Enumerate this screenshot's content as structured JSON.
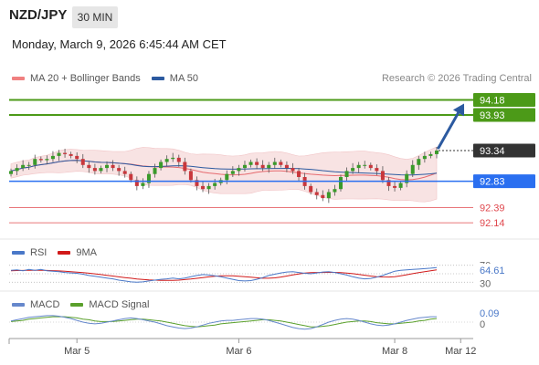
{
  "header": {
    "symbol": "NZD/JPY",
    "timeframe": "30 MIN",
    "datetime": "Monday, March 9, 2026 6:45:44 AM CET"
  },
  "credit": "Research © 2026 Trading Central",
  "colors": {
    "up_green": "#4c9a18",
    "current": "#333333",
    "pivot_blue": "#2a6ff0",
    "support_red": "#e0484e",
    "bb_fill": "#f6d9da",
    "ma20": "#e66a6f",
    "ma50": "#2c5aa0",
    "rsi": "#4a78c8",
    "rsi_ma": "#d11a1a",
    "macd": "#6688cc",
    "macd_signal": "#5aa02c"
  },
  "chart_data": [
    {
      "type": "candlestick",
      "legend": [
        {
          "name": "MA 20 + Bollinger Bands",
          "color": "#f08080"
        },
        {
          "name": "MA 50",
          "color": "#2c5aa0"
        }
      ],
      "price_range": [
        91.9,
        94.4
      ],
      "levels": [
        {
          "value": 94.18,
          "label": "94.18",
          "kind": "resistance"
        },
        {
          "value": 93.93,
          "label": "93.93",
          "kind": "resistance"
        },
        {
          "value": 93.34,
          "label": "93.34",
          "kind": "current"
        },
        {
          "value": 92.83,
          "label": "92.83",
          "kind": "pivot"
        },
        {
          "value": 92.39,
          "label": "92.39",
          "kind": "support"
        },
        {
          "value": 92.14,
          "label": "92.14",
          "kind": "support"
        }
      ],
      "closes": [
        93.0,
        93.05,
        93.1,
        93.1,
        93.2,
        93.18,
        93.2,
        93.25,
        93.3,
        93.28,
        93.25,
        93.2,
        93.1,
        93.05,
        93.0,
        93.05,
        93.1,
        93.05,
        93.0,
        92.95,
        92.85,
        92.75,
        92.8,
        92.95,
        93.05,
        93.15,
        93.2,
        93.22,
        93.15,
        93.0,
        92.85,
        92.75,
        92.7,
        92.75,
        92.8,
        92.85,
        92.95,
        93.0,
        93.05,
        93.1,
        93.15,
        93.1,
        93.05,
        93.1,
        93.15,
        93.1,
        93.05,
        93.0,
        92.9,
        92.75,
        92.65,
        92.6,
        92.55,
        92.65,
        92.7,
        92.9,
        93.0,
        93.05,
        93.1,
        93.1,
        93.05,
        93.0,
        92.85,
        92.75,
        92.72,
        92.8,
        92.95,
        93.1,
        93.2,
        93.25,
        93.28,
        93.34
      ]
    },
    {
      "type": "line",
      "indicator": "RSI",
      "legend": [
        {
          "name": "RSI",
          "color": "#4a78c8"
        },
        {
          "name": "9MA",
          "color": "#d11a1a"
        }
      ],
      "value_label": "64.61",
      "level_labels": [
        "70",
        "30"
      ],
      "range": [
        20,
        80
      ],
      "rsi": [
        58,
        59,
        57,
        60,
        58,
        60,
        57,
        56,
        55,
        53,
        52,
        51,
        49,
        46,
        44,
        42,
        40,
        38,
        35,
        33,
        31,
        30,
        31,
        33,
        35,
        37,
        38,
        40,
        38,
        40,
        43,
        46,
        48,
        47,
        45,
        43,
        40,
        37,
        34,
        33,
        34,
        37,
        41,
        46,
        49,
        52,
        54,
        55,
        53,
        51,
        50,
        52,
        54,
        55,
        53,
        50,
        47,
        43,
        40,
        38,
        39,
        42,
        46,
        51,
        56,
        58,
        59,
        60,
        61,
        62,
        63,
        64.61
      ],
      "ma9": [
        57,
        57.5,
        57.8,
        58,
        58,
        58,
        57.7,
        57.3,
        56.6,
        55.8,
        54.8,
        53.8,
        52.7,
        51.3,
        49.7,
        48,
        46.3,
        44.6,
        42.8,
        41,
        39.4,
        37.8,
        36.6,
        35.5,
        34.9,
        34.3,
        34.3,
        34.6,
        35.1,
        36.3,
        37.6,
        39.2,
        41.1,
        42.8,
        44.2,
        45,
        45.2,
        45,
        44.2,
        43.1,
        41.8,
        40.5,
        39.5,
        39.4,
        40.4,
        42.2,
        44.6,
        47.2,
        49.5,
        51.4,
        52.5,
        52.9,
        53,
        53.3,
        53.2,
        52.6,
        51.6,
        50.2,
        48.4,
        46.5,
        44.6,
        43.2,
        42.4,
        42.3,
        43.2,
        45.3,
        47.7,
        50.2,
        52.7,
        55,
        57.1,
        59
      ]
    },
    {
      "type": "line",
      "indicator": "MACD",
      "legend": [
        {
          "name": "MACD",
          "color": "#6688cc"
        },
        {
          "name": "MACD Signal",
          "color": "#5aa02c"
        }
      ],
      "value_label": "0.09",
      "zero_label": "0",
      "range": [
        -0.2,
        0.2
      ],
      "macd": [
        0.02,
        0.04,
        0.06,
        0.08,
        0.09,
        0.1,
        0.11,
        0.11,
        0.1,
        0.08,
        0.06,
        0.03,
        0.0,
        -0.02,
        -0.03,
        -0.02,
        0.0,
        0.02,
        0.04,
        0.06,
        0.07,
        0.06,
        0.04,
        0.02,
        0.0,
        -0.03,
        -0.06,
        -0.08,
        -0.1,
        -0.11,
        -0.1,
        -0.08,
        -0.05,
        -0.02,
        0.0,
        0.02,
        0.03,
        0.03,
        0.04,
        0.05,
        0.06,
        0.06,
        0.05,
        0.03,
        0.0,
        -0.03,
        -0.06,
        -0.09,
        -0.11,
        -0.12,
        -0.11,
        -0.08,
        -0.04,
        0.0,
        0.03,
        0.05,
        0.06,
        0.05,
        0.03,
        0.0,
        -0.03,
        -0.05,
        -0.06,
        -0.05,
        -0.03,
        0.0,
        0.03,
        0.05,
        0.07,
        0.08,
        0.09,
        0.09
      ],
      "signal": [
        0.01,
        0.02,
        0.03,
        0.05,
        0.06,
        0.07,
        0.08,
        0.09,
        0.09,
        0.09,
        0.08,
        0.07,
        0.05,
        0.04,
        0.02,
        0.01,
        0.01,
        0.01,
        0.02,
        0.03,
        0.04,
        0.05,
        0.05,
        0.04,
        0.03,
        0.02,
        0.0,
        -0.02,
        -0.04,
        -0.06,
        -0.07,
        -0.08,
        -0.07,
        -0.06,
        -0.05,
        -0.03,
        -0.02,
        -0.01,
        0.0,
        0.01,
        0.02,
        0.03,
        0.04,
        0.04,
        0.03,
        0.02,
        0.0,
        -0.02,
        -0.04,
        -0.06,
        -0.08,
        -0.08,
        -0.07,
        -0.06,
        -0.04,
        -0.02,
        0.0,
        0.01,
        0.02,
        0.02,
        0.01,
        -0.01,
        -0.02,
        -0.03,
        -0.03,
        -0.02,
        -0.01,
        0.0,
        0.02,
        0.03,
        0.05,
        0.06
      ]
    }
  ],
  "x_axis": {
    "ticks": [
      {
        "label": "Mar 5",
        "index": 11
      },
      {
        "label": "Mar 6",
        "index": 38
      },
      {
        "label": "Mar 8",
        "index": 64
      },
      {
        "label": "Mar 12",
        "index": 75
      }
    ]
  }
}
